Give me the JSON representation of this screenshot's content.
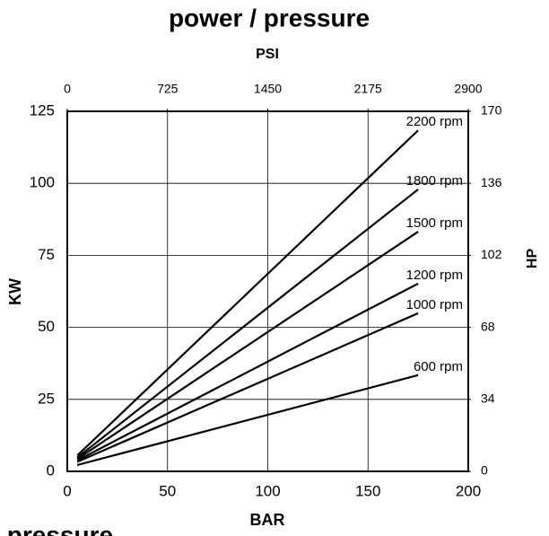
{
  "chart_data": {
    "type": "line",
    "title": "power / pressure",
    "x_label": "BAR",
    "x2_label": "PSI",
    "y_label": "KW",
    "y2_label": "HP",
    "x": [
      5,
      175
    ],
    "series": [
      {
        "name": "2200 rpm",
        "color": "#000000",
        "values": [
          5.5,
          118.4
        ]
      },
      {
        "name": "1800 rpm",
        "color": "#000000",
        "values": [
          4.8,
          97.9
        ]
      },
      {
        "name": "1500 rpm",
        "color": "#000000",
        "values": [
          4.3,
          83.2
        ]
      },
      {
        "name": "1200 rpm",
        "color": "#000000",
        "values": [
          3.8,
          65.2
        ]
      },
      {
        "name": "1000 rpm",
        "color": "#000000",
        "values": [
          3.3,
          54.9
        ]
      },
      {
        "name": "600 rpm",
        "color": "#000000",
        "values": [
          2.2,
          33.4
        ]
      }
    ],
    "xlim": [
      0,
      200
    ],
    "xticks": [
      0,
      50,
      100,
      150,
      200
    ],
    "x2lim": [
      0,
      2900
    ],
    "x2ticks": [
      0,
      725,
      1450,
      2175,
      2900
    ],
    "ylim": [
      0,
      125
    ],
    "yticks": [
      0,
      25,
      50,
      75,
      100,
      125
    ],
    "y2lim": [
      0,
      170
    ],
    "y2ticks": [
      0,
      34,
      68,
      102,
      136,
      170
    ],
    "grid": true
  }
}
